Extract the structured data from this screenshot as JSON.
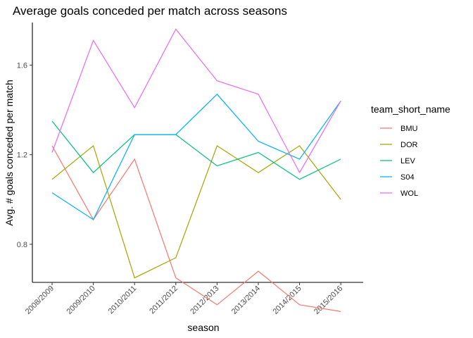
{
  "chart_data": {
    "type": "line",
    "title": "Average goals conceded per match across seasons",
    "xlabel": "season",
    "ylabel": "Avg. # goals conceded per match",
    "categories": [
      "2008/2009",
      "2009/2010",
      "2010/2011",
      "2011/2012",
      "2012/2013",
      "2013/2014",
      "2014/2015",
      "2015/2016"
    ],
    "y_ticks": [
      0.8,
      1.2,
      1.6
    ],
    "y_tick_labels": [
      "0.8",
      "1.2",
      "1.6"
    ],
    "ylim": [
      0.63,
      1.79
    ],
    "grid": false,
    "legend": {
      "title": "team_short_name",
      "position": "right"
    },
    "series": [
      {
        "name": "BMU",
        "color": "#F8766D",
        "values": [
          1.24,
          0.91,
          1.18,
          0.65,
          0.53,
          0.68,
          0.53,
          0.5
        ]
      },
      {
        "name": "DOR",
        "color": "#A3A500",
        "values": [
          1.09,
          1.24,
          0.65,
          0.74,
          1.24,
          1.12,
          1.24,
          1.0
        ]
      },
      {
        "name": "LEV",
        "color": "#00BF7D",
        "values": [
          1.35,
          1.12,
          1.29,
          1.29,
          1.15,
          1.21,
          1.09,
          1.18
        ]
      },
      {
        "name": "S04",
        "color": "#00B0F6",
        "values": [
          1.03,
          0.91,
          1.29,
          1.29,
          1.47,
          1.26,
          1.18,
          1.44
        ]
      },
      {
        "name": "WOL",
        "color": "#E76BF3",
        "values": [
          1.21,
          1.71,
          1.41,
          1.76,
          1.53,
          1.47,
          1.12,
          1.44
        ]
      }
    ]
  }
}
